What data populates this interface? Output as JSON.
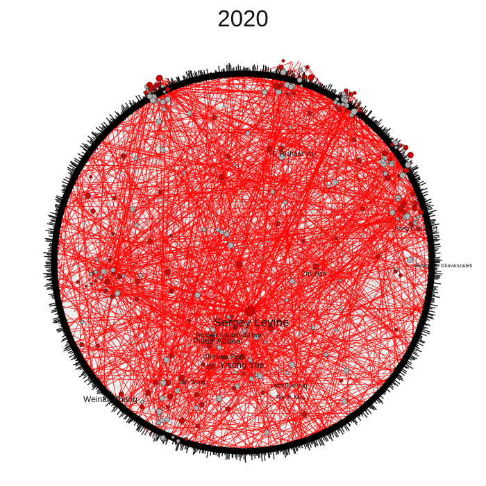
{
  "title": "2020",
  "colors": {
    "background": "#ffffff",
    "highlight_edge": "#ff0000",
    "background_edge": "#c8c8c8",
    "highlight_node": "#cc0000",
    "other_node": "#b0b0b0",
    "ring": "#000000",
    "label": "#111111"
  },
  "labels": [
    {
      "id": "sergey",
      "text": "Sergey Levine"
    },
    {
      "id": "richard",
      "text": "F. Richard Yu"
    },
    {
      "id": "zhuhan",
      "text": "Zhu Han"
    },
    {
      "id": "songguo",
      "text": "Song Guo 0001"
    },
    {
      "id": "weinan",
      "text": "Weinan Zhang"
    },
    {
      "id": "ruslan",
      "text": "Ruslan Salakhutdinov"
    },
    {
      "id": "pieter",
      "text": "Pieter Abbeel"
    },
    {
      "id": "chelsea",
      "text": "Chelsea Finn"
    },
    {
      "id": "yisong",
      "text": "Yisong Yue"
    },
    {
      "id": "dingbuesing",
      "text": "Lars Buesing"
    },
    {
      "id": "jiawang",
      "text": "Jian Wang"
    },
    {
      "id": "eric",
      "text": "Eric P. Xing"
    },
    {
      "id": "mohammad",
      "text": "Mohammad Ghavamzadeh"
    }
  ]
}
